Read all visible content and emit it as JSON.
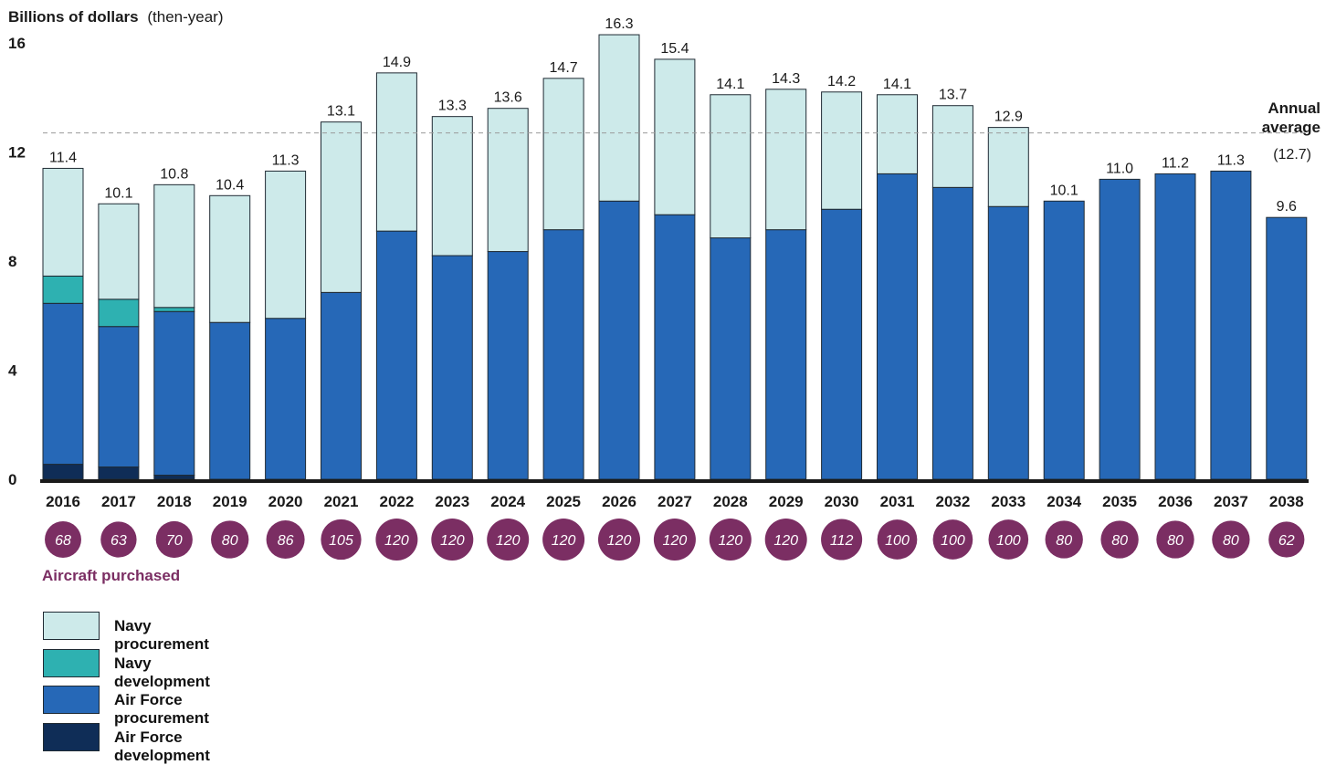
{
  "chart_data": {
    "type": "bar",
    "stacked": true,
    "ylabel": "Billions of dollars",
    "ylabel_suffix": "(then-year)",
    "ylim": [
      0,
      16
    ],
    "yticks": [
      "0",
      "4",
      "8",
      "12",
      "16"
    ],
    "categories": [
      "2016",
      "2017",
      "2018",
      "2019",
      "2020",
      "2021",
      "2022",
      "2023",
      "2024",
      "2025",
      "2026",
      "2027",
      "2028",
      "2029",
      "2030",
      "2031",
      "2032",
      "2033",
      "2034",
      "2035",
      "2036",
      "2037",
      "2038"
    ],
    "totals_labels": [
      "11.4",
      "10.1",
      "10.8",
      "10.4",
      "11.3",
      "13.1",
      "14.9",
      "13.3",
      "13.6",
      "14.7",
      "16.3",
      "15.4",
      "14.1",
      "14.3",
      "14.2",
      "14.1",
      "13.7",
      "12.9",
      "10.1",
      "11.0",
      "11.2",
      "11.3",
      "9.6"
    ],
    "series": [
      {
        "name": "Air Force development",
        "color": "#0f2d57",
        "values": [
          0.55,
          0.45,
          0.15,
          0,
          0,
          0,
          0,
          0,
          0,
          0,
          0,
          0,
          0,
          0,
          0,
          0,
          0,
          0,
          0,
          0,
          0,
          0,
          0
        ]
      },
      {
        "name": "Air Force procurement",
        "color": "#2668b7",
        "values": [
          5.9,
          5.15,
          6.0,
          5.75,
          5.9,
          6.85,
          9.1,
          8.2,
          8.35,
          9.15,
          10.2,
          9.7,
          8.85,
          9.15,
          9.9,
          11.2,
          10.7,
          10.0,
          10.2,
          11.0,
          11.2,
          11.3,
          9.6
        ]
      },
      {
        "name": "Navy development",
        "color": "#2eb1b1",
        "values": [
          1.0,
          1.0,
          0.15,
          0,
          0,
          0,
          0,
          0,
          0,
          0,
          0,
          0,
          0,
          0,
          0,
          0,
          0,
          0,
          0,
          0,
          0,
          0,
          0
        ]
      },
      {
        "name": "Navy procurement",
        "color": "#cdeaea",
        "values": [
          3.95,
          3.5,
          4.5,
          4.65,
          5.4,
          6.25,
          5.8,
          5.1,
          5.25,
          5.55,
          6.1,
          5.7,
          5.25,
          5.15,
          4.3,
          2.9,
          3.0,
          2.9,
          0,
          0,
          0,
          0,
          0
        ]
      }
    ],
    "annual_average": {
      "value": 12.7,
      "label_line1": "Annual",
      "label_line2": "average",
      "label_line3": "(12.7)"
    },
    "aircraft_purchased": {
      "label": "Aircraft purchased",
      "values": [
        "68",
        "63",
        "70",
        "80",
        "86",
        "105",
        "120",
        "120",
        "120",
        "120",
        "120",
        "120",
        "120",
        "120",
        "112",
        "100",
        "100",
        "100",
        "80",
        "80",
        "80",
        "80",
        "62"
      ],
      "color": "#7b2e63"
    }
  },
  "legend": [
    {
      "label": "Navy procurement",
      "color": "#cdeaea"
    },
    {
      "label": "Navy development",
      "color": "#2eb1b1"
    },
    {
      "label": "Air Force procurement",
      "color": "#2668b7"
    },
    {
      "label": "Air Force development",
      "color": "#0f2d57"
    }
  ]
}
